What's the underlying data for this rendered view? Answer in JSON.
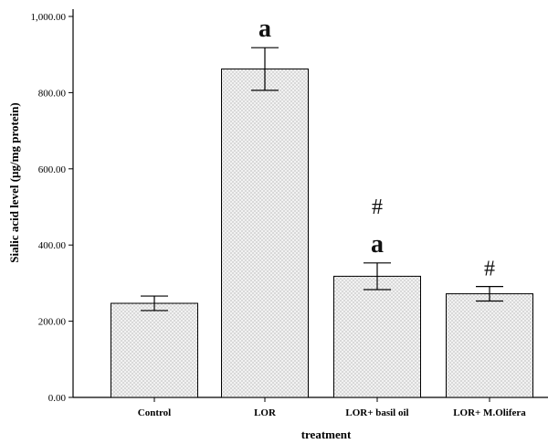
{
  "chart_data": {
    "type": "bar",
    "xlabel": "treatment",
    "ylabel": "Sialic acid level (µg/mg protein)",
    "ylim": [
      0,
      1000
    ],
    "yticks": [
      0,
      200,
      400,
      600,
      800,
      1000
    ],
    "ytick_labels": [
      "0.00",
      "200.00",
      "400.00",
      "600.00",
      "800.00",
      "1,000.00"
    ],
    "categories": [
      "Control",
      "LOR",
      "LOR+ basil oil",
      "LOR+ M.Olifera"
    ],
    "values": [
      247,
      862,
      318,
      272
    ],
    "error_low": [
      228,
      806,
      283,
      253
    ],
    "error_high": [
      266,
      918,
      353,
      291
    ],
    "annotations": [
      {
        "category_index": 1,
        "marks": [
          "a"
        ]
      },
      {
        "category_index": 2,
        "marks": [
          "#",
          "a"
        ]
      },
      {
        "category_index": 3,
        "marks": [
          "#"
        ]
      }
    ],
    "grid": false,
    "bar_fill": "dotted",
    "bar_fill_color": "#f2f2f2",
    "bar_dot_color": "#9a9a9a"
  }
}
